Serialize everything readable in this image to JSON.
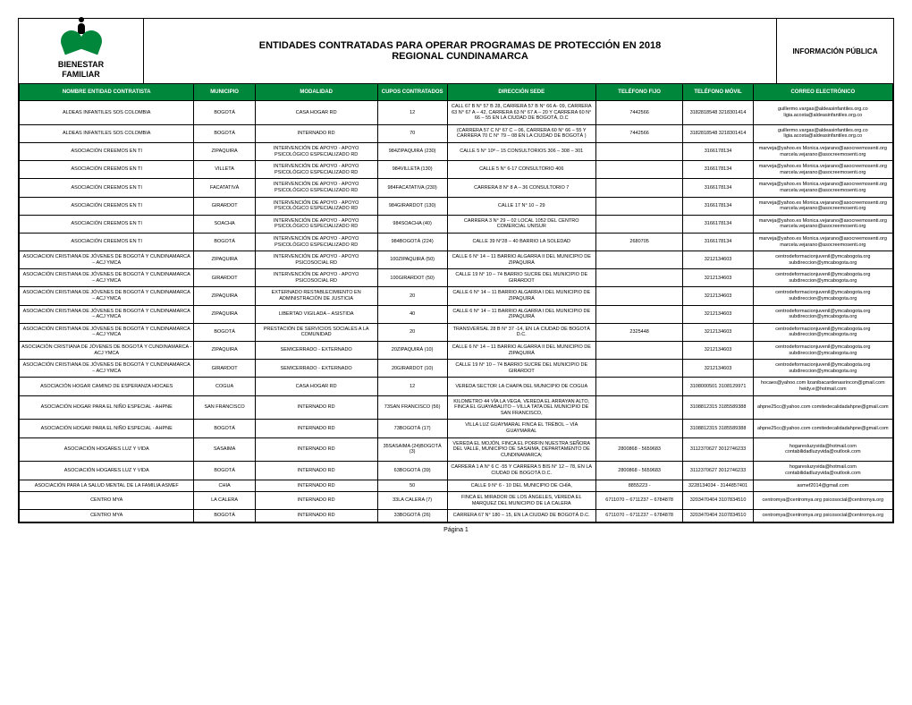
{
  "logo": {
    "line1": "BIENESTAR",
    "line2": "FAMILIAR"
  },
  "title": {
    "line1": "ENTIDADES CONTRATADAS PARA OPERAR PROGRAMAS DE PROTECCIÓN EN 2018",
    "line2": "REGIONAL  CUNDINAMARCA"
  },
  "info": "INFORMACIÓN PÚBLICA",
  "columns": [
    "NOMBRE ENTIDAD CONTRATISTA",
    "MUNICIPIO",
    "MODALIDAD",
    "CUPOS CONTRATADOS",
    "DIRECCIÓN SEDE",
    "TELÉFONO FIJO",
    "TELÉFONO MÓVIL",
    "CORREO ELECTRÓNICO"
  ],
  "rows": [
    [
      "ALDEAS INFANTILES SOS COLOMBIA",
      "BOGOTÁ",
      "CASA HOGAR RD",
      "12",
      "CALL 67 B N° 57 B 28, CARRERA 57 B N° 66 A- 09, CARRERA 63 N° 67 A – 42, CARRERA 63 N° 67 A – 20 Y CARRERA 60 N° 66 – 55 EN LA CIUDAD DE BOGOTÁ, D.C",
      "7442566",
      "3182818548 3218301414",
      "guillermo.vargas@aldeasinfantiles.org.co ligia.acosta@aldeasinfantiles.org.co"
    ],
    [
      "ALDEAS INFANTILES SOS COLOMBIA",
      "BOGOTÁ",
      "INTERNADO RD",
      "70",
      "(CARRERA 57 C N° 67 C – 06, CARRERA 60 N° 66 – 55 Y CARRERA 70 C N° 79 – 08 EN LA CIUDAD DE BOGOTÁ )",
      "7442566",
      "3182818548 3218301414",
      "guillermo.vargas@aldeasinfantiles.org.co ligia.acosta@aldeasinfantiles.org.co"
    ],
    [
      "ASOCIACIÓN CREEMOS EN TI",
      "ZIPAQUIRA",
      "INTERVENCIÓN DE APOYO - APOYO PSICOLÓGICO ESPECIALIZADO RD",
      "984ZIPAQUIRÁ (230)",
      "CALLE 5 N° 10ª – 15 CONSULTORIOS 306 – 308 – 301",
      "",
      "3166178134",
      "marveja@yahoo.es Monica.vejarano@asocreemosenti.org marcela.vejarano@asocreemosenti.org"
    ],
    [
      "ASOCIACIÓN CREEMOS EN TI",
      "VILLETA",
      "INTERVENCIÓN DE APOYO - APOYO PSICOLÓGICO ESPECIALIZADO RD",
      "984VILLETA (130)",
      "CALLE 5 N° 6-17 CONSULTORIO 406",
      "",
      "3166178134",
      "marveja@yahoo.es Monica.vejarano@asocreemosenti.org marcela.vejarano@asocreemosenti.org"
    ],
    [
      "ASOCIACIÓN CREEMOS EN TI",
      "FACATATIVÁ",
      "INTERVENCIÓN DE APOYO - APOYO PSICOLÓGICO ESPECIALIZADO RD",
      "984FACATATIVA (230)",
      "CARRERA 8 N° 8 A – 36 CONSULTORIO 7",
      "",
      "3166178134",
      "marveja@yahoo.es Monica.vejarano@asocreemosenti.org marcela.vejarano@asocreemosenti.org"
    ],
    [
      "ASOCIACIÓN CREEMOS EN TI",
      "GIRARDOT",
      "INTERVENCIÓN DE APOYO - APOYO PSICOLÓGICO ESPECIALIZADO RD",
      "984GIRARDOT (130)",
      "CALLE 17 N° 10 – 29",
      "",
      "3166178134",
      "marveja@yahoo.es Monica.vejarano@asocreemosenti.org marcela.vejarano@asocreemosenti.org"
    ],
    [
      "ASOCIACIÓN CREEMOS EN TI",
      "SOACHA",
      "INTERVENCIÓN DE APOYO - APOYO PSICOLÓGICO ESPECIALIZADO RD",
      "984SOACHA (40)",
      "CARRERA 3 N° 29 – 02 LOCAL 1052 DEL CENTRO COMERCIAL UNISUR",
      "",
      "3166178134",
      "marveja@yahoo.es Monica.vejarano@asocreemosenti.org marcela.vejarano@asocreemosenti.org"
    ],
    [
      "ASOCIACIÓN CREEMOS EN TI",
      "BOGOTÁ",
      "INTERVENCIÓN DE APOYO - APOYO PSICOLÓGICO ESPECIALIZADO RD",
      "984BOGOTÁ (224)",
      "CALLE 39 N°28 – 40 BARRIO LA SOLEDAD",
      "2680705",
      "3166178134",
      "marveja@yahoo.es Monica.vejarano@asocreemosenti.org marcela.vejarano@asocreemosenti.org"
    ],
    [
      "ASOCIACION CRISTIANA DE JÓVENES DE BOGOTÁ Y CUNDINAMARCA – ACJ YMCA",
      "ZIPAQUIRA",
      "INTERVENCIÓN DE APOYO - APOYO PSICOSOCIAL RD",
      "100ZIPAQUIRÁ (50)",
      "CALLE 6 N° 14 – 11 BARRIO ALGARRA II DEL MUNICIPIO DE ZIPAQUIRÁ",
      "",
      "3212134603",
      "centrodeformacionjuvenil@ymcabogota.org subdireccion@ymcabogota.org"
    ],
    [
      "ASOCIACIÓN CRISTIANA DE JÓVENES DE BOGOTÁ Y CUNDINAMARCA – ACJ YMCA",
      "GIRARDOT",
      "INTERVENCIÓN DE APOYO - APOYO PSICOSOCIAL RD",
      "100GIRARDOT (50)",
      "CALLE 19 N° 10 – 74 BARRIO SUCRE DEL MUNICIPIO DE GIRARDOT",
      "",
      "3212134603",
      "centrodeformacionjuvenil@ymcabogota.org subdireccion@ymcabogota.org"
    ],
    [
      "ASOCIACIÓN CRISTIANA DE JÓVENES DE BOGOTÁ Y CUNDINAMARCA – ACJ YMCA",
      "ZIPAQUIRA",
      "EXTERNADO RESTABLECIMIENTO EN ADMINISTRACIÓN DE JUSTICIA",
      "20",
      "CALLE 6 N° 14 – 11 BARRIO ALGARRA I DEL MUNICIPIO DE ZIPAQUIRÁ",
      "",
      "3212134603",
      "centrodeformacionjuvenil@ymcabogota.org subdireccion@ymcabogota.org"
    ],
    [
      "ASOCIACIÓN CRISTIANA DE JÓVENES DE BOGOTÁ Y CUNDINAMARCA – ACJ YMCA",
      "ZIPAQUIRA",
      "LIBERTAD VIGILADA – ASISTIDA",
      "40",
      "CALLE 6 N° 14 – 11 BARRIO ALGARRA I DEL MUNICIPIO DE ZIPAQUIRÁ",
      "",
      "3212134603",
      "centrodeformacionjuvenil@ymcabogota.org subdireccion@ymcabogota.org"
    ],
    [
      "ASOCIACIÓN CRISTIANA DE JÓVENES DE BOGOTÁ Y CUNDINAMARCA – ACJ YMCA",
      "BOGOTÁ",
      "PRESTACIÓN DE SERVICIOS SOCIALES A LA COMUNIDAD",
      "20",
      "TRANSVERSAL 28 B N° 37 -14, EN LA CIUDAD DE BOGOTÁ D.C.",
      "2325448",
      "3212134603",
      "centrodeformacionjuvenil@ymcabogota.org subdireccion@ymcabogota.org"
    ],
    [
      "ASOCIACIÓN CRISTIANA DE JÓVENES DE BOGOTÁ Y CUNDINAMARCA - ACJ YMCA",
      "ZIPAQUIRA",
      "SEMICERRADO - EXTERNADO",
      "20ZIPAQUIRÁ (10)",
      "CALLE 6 N° 14 – 11 BARRIO ALGARRA II DEL MUNICIPIO DE ZIPAQUIRÁ",
      "",
      "3212134603",
      "centrodeformacionjuvenil@ymcabogota.org subdireccion@ymcabogota.org"
    ],
    [
      "ASOCIACIÓN CRISTIANA DE JÓVENES DE BOGOTÁ Y CUNDINAMARCA – ACJ YMCA",
      "GIRARDOT",
      "SEMICERRADO - EXTERNADO",
      "20GIRARDOT (10)",
      "CALLE 19 N° 10 – 74 BARRIO SUCRE DEL MUNICIPIO DE GIRARDOT",
      "",
      "3212134603",
      "centrodeformacionjuvenil@ymcabogota.org subdireccion@ymcabogota.org"
    ],
    [
      "ASOCIACIÓN HOGAR CAMINO DE ESPERANZA HOCAES",
      "COGUA",
      "CASA HOGAR RD",
      "12",
      "VEREDA SECTOR LA CHAPA DEL MUNICIPIO DE COGUA",
      "",
      "3108000501 3108129971",
      "hocaes@yahoo.com lizanibacardenasrincon@gmail.com heidy.e@hotmail.com"
    ],
    [
      "ASOCIACIÓN HOGAR PARA EL NIÑO ESPECIAL - AHPNE",
      "SAN FRANCISCO",
      "INTERNADO RD",
      "73SAN FRANCISCO (56)",
      "KILOMETRO 44 VÍA LA VEGA, VEREDA EL ARRAYAN ALTO, FINCA EL GUAYABALITO – VILLA TATA DEL MUNICIPIO DE SAN FRANCISCO,",
      "",
      "3108812315 3185589388",
      "ahpne25cc@yahoo.com comitedecalidadahpne@gmail.com"
    ],
    [
      "ASOCIACIÓN HOGAR PARA EL NIÑO ESPECIAL - AHPNE",
      "BOGOTÁ",
      "INTERNADO RD",
      "73BOGOTÁ (17)",
      "VILLA LUZ GUAYMARAL FINCA EL TRÉBOL – VÍA GUAYMARAL",
      "",
      "3108812315 3185589388",
      "ahpne25cc@yahoo.com comitedecalidadahpne@gmail.com"
    ],
    [
      "ASOCIACIÓN HOGARES LUZ Y VIDA",
      "SASAIMA",
      "INTERNADO RD",
      "35SASAIMA (24)BOGOTÁ (3)",
      "VEREDA EL MOJÓN, FINCA EL PORFIN NUESTRA SEÑORA DEL VALLE, MUNICIPIO DE SASAIMA, DEPARTAMENTO DE CUNDINAMARCA;",
      "2800868 - 5659683",
      "3112370627 3012746233",
      "hogaresluzyvida@hotmail.com contabilidadluzyvida@outlook.com"
    ],
    [
      "ASOCIACIÓN HOGARES LUZ Y VIDA",
      "BOGOTÁ",
      "INTERNADO RD",
      "63BOGOTÁ (39)",
      "CARRERA 1 A N° 6 C -55 Y CARRERA 5 BIS N° 12 – 78, EN LA CIUDAD DE BOGOTÁ D.C.",
      "2800868 - 5659683",
      "3112370627 3012746233",
      "hogaresluzyvida@hotmail.com contabilidadluzyvida@outlook.com"
    ],
    [
      "ASOCIACIÓN PARA LA SALUD MENTAL DE LA FAMILIA ASMEF",
      "CHIA",
      "INTERNADO RD",
      "50",
      "CALLE 9 N° 6 - 10 DEL MUNICIPIO DE CHÍA,",
      "8855223 -",
      "3228134034 - 3144857401",
      "asmef2014@gmail.com"
    ],
    [
      "CENTRO MYA",
      "LA CALERA",
      "INTERNADO RD",
      "33LA CALERA (7)",
      "FINCA EL MIRADOR DE LOS ÁNGELES, VEREDA EL MARQUEZ DEL MUNICIPIO DE LA CALERA",
      "6711070 – 6711237 – 6784878",
      "3203470404 3107834510",
      "centromya@centromya.org psicosocial@centromya.org"
    ],
    [
      "CENTRO MYA",
      "BOGOTÁ",
      "INTERNADO RD",
      "33BOGOTÁ (26)",
      "CARRERA 67 N° 180 – 15, EN LA CIUDAD DE BOGOTÁ D.C.",
      "6711070 – 6711237 – 6784878",
      "3203470404 3107834510",
      "centromya@centromya.org psicosocial@centromya.org"
    ]
  ],
  "footer": "Página 1",
  "colors": {
    "header": "#00873c",
    "border": "#000000"
  }
}
